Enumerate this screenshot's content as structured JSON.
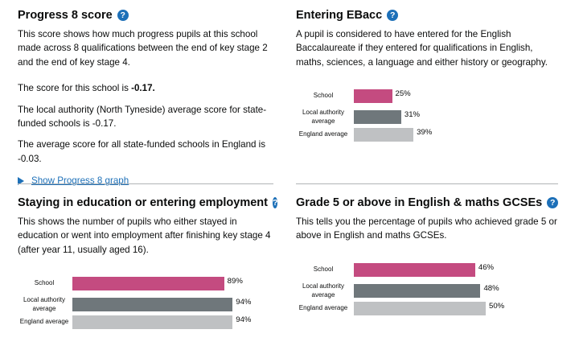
{
  "progress8": {
    "title": "Progress 8 score",
    "description": "This score shows how much progress pupils at this school made across 8 qualifications between the end of key stage 2 and the end of key stage 4.",
    "score_prefix": "The score for this school is ",
    "score_value": "-0.17.",
    "local_authority": "The local authority (North Tyneside) average score for state-funded schools is -0.17.",
    "england": "The average score for all state-funded schools in England is -0.03.",
    "graph_link": "Show Progress 8 graph"
  },
  "ebacc": {
    "title": "Entering EBacc",
    "description": "A pupil is considered to have entered for the English Baccalaureate if they entered for qualifications in English, maths, sciences, a language and either history or geography."
  },
  "education": {
    "title": "Staying in education or entering employment",
    "description": "This shows the number of pupils who either stayed in education or went into employment after finishing key stage 4 (after year 11, usually aged 16)."
  },
  "grade5": {
    "title": "Grade 5 or above in English & maths GCSEs",
    "description": "This tells you the percentage of pupils who achieved grade 5 or above in English and maths GCSEs."
  },
  "help_icon": "?",
  "colors": {
    "school": "#c44b80",
    "local_authority": "#6f777b",
    "england": "#bfc1c3",
    "link": "#1d70b8"
  },
  "chart_data": [
    {
      "type": "bar",
      "orientation": "horizontal",
      "categories": [
        "School",
        "Local authority average",
        "England average"
      ],
      "values": [
        25,
        31,
        39
      ],
      "labels": [
        "25%",
        "31%",
        "39%"
      ],
      "xlim": [
        0,
        100
      ]
    },
    {
      "type": "bar",
      "orientation": "horizontal",
      "categories": [
        "School",
        "Local authority average",
        "England average"
      ],
      "values": [
        89,
        94,
        94
      ],
      "labels": [
        "89%",
        "94%",
        "94%"
      ],
      "xlim": [
        0,
        100
      ]
    },
    {
      "type": "bar",
      "orientation": "horizontal",
      "categories": [
        "School",
        "Local authority average",
        "England average"
      ],
      "values": [
        46,
        48,
        50
      ],
      "labels": [
        "46%",
        "48%",
        "50%"
      ],
      "xlim": [
        0,
        100
      ]
    }
  ]
}
